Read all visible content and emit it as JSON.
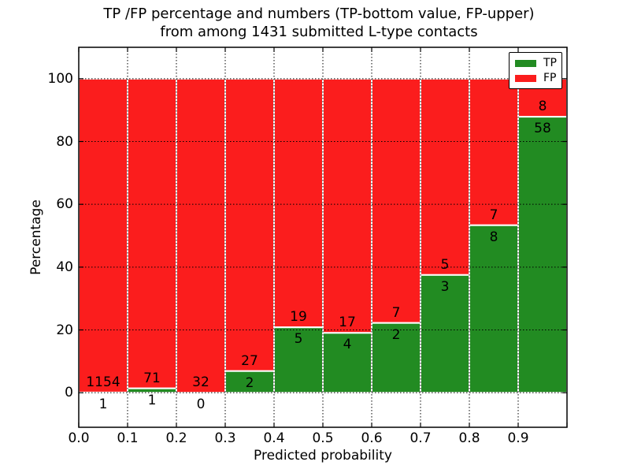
{
  "figure": {
    "title_line1": "TP /FP percentage and numbers (TP-bottom value, FP-upper)",
    "title_line2": "from among 1431 submitted L-type contacts"
  },
  "chart_data": {
    "type": "bar",
    "variant": "stacked-percentage-histogram",
    "title": "TP /FP percentage and numbers (TP-bottom value, FP-upper)\nfrom among 1431 submitted L-type contacts",
    "xlabel": "Predicted probability",
    "ylabel": "Percentage",
    "xlim": [
      0.0,
      1.0
    ],
    "ylim": [
      -11,
      110
    ],
    "xticks": [
      "0.0",
      "0.1",
      "0.2",
      "0.3",
      "0.4",
      "0.5",
      "0.6",
      "0.7",
      "0.8",
      "0.9"
    ],
    "yticks": [
      0,
      20,
      40,
      60,
      80,
      100
    ],
    "grid": "dotted",
    "bin_edges": [
      0.0,
      0.1,
      0.2,
      0.3,
      0.4,
      0.5,
      0.6,
      0.7,
      0.8,
      0.9,
      1.0
    ],
    "series": [
      {
        "name": "TP",
        "color": "#228b22",
        "counts": [
          1,
          1,
          0,
          2,
          5,
          4,
          2,
          3,
          8,
          58
        ]
      },
      {
        "name": "FP",
        "color": "#fb1d1d",
        "counts": [
          1154,
          71,
          32,
          27,
          19,
          17,
          7,
          5,
          7,
          8
        ]
      }
    ],
    "tp_percent": [
      0.09,
      1.39,
      0.0,
      6.9,
      20.83,
      19.05,
      22.22,
      37.5,
      53.33,
      87.88
    ],
    "legend": {
      "position": "upper right",
      "entries": [
        {
          "label": "TP",
          "color": "#228b22"
        },
        {
          "label": "FP",
          "color": "#fb1d1d"
        }
      ]
    }
  },
  "colors": {
    "tp_green": "#228b22",
    "fp_red": "#fb1d1d",
    "grid": "#000000",
    "bar_edge": "#ffffff",
    "background": "#ffffff"
  }
}
